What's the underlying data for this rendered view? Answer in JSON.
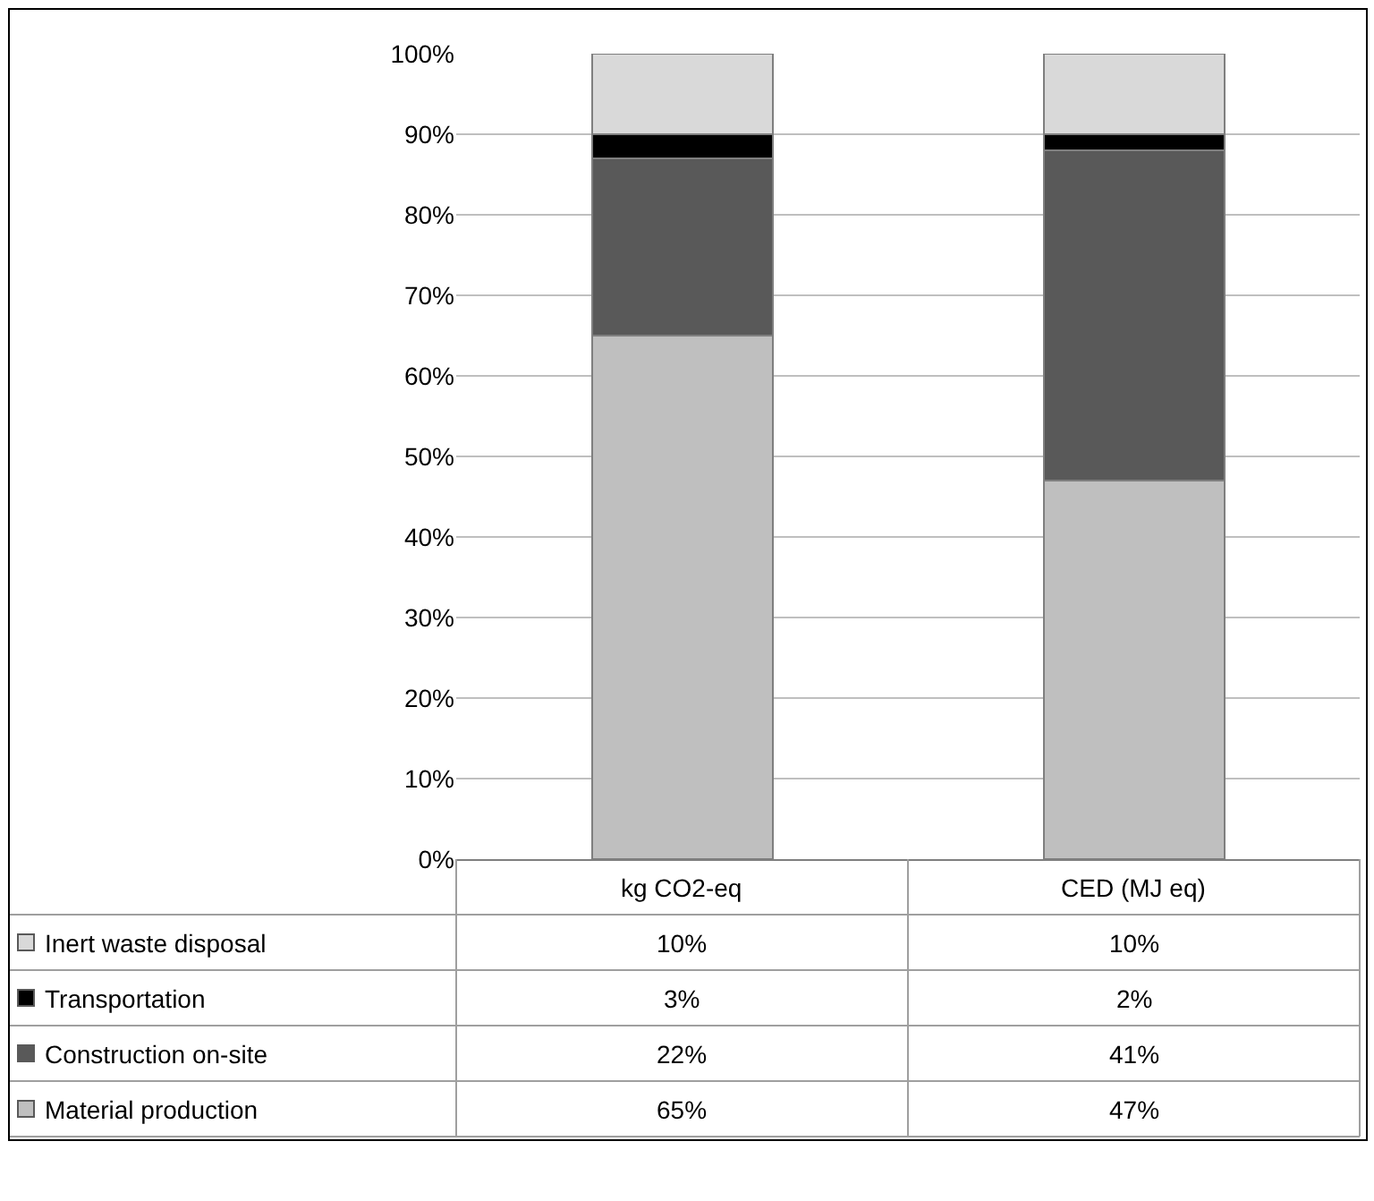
{
  "chart_data": {
    "type": "bar",
    "stacked": true,
    "categories": [
      "kg CO2-eq",
      "CED (MJ eq)"
    ],
    "series": [
      {
        "name": "Material production",
        "color": "#bfbfbf",
        "values": [
          65,
          47
        ],
        "value_labels": [
          "65%",
          "47%"
        ]
      },
      {
        "name": "Construction on-site",
        "color": "#595959",
        "values": [
          22,
          41
        ],
        "value_labels": [
          "22%",
          "41%"
        ]
      },
      {
        "name": "Transportation",
        "color": "#000000",
        "values": [
          3,
          2
        ],
        "value_labels": [
          "3%",
          "2%"
        ]
      },
      {
        "name": "Inert waste disposal",
        "color": "#d9d9d9",
        "values": [
          10,
          10
        ],
        "value_labels": [
          "10%",
          "10%"
        ]
      }
    ],
    "ylim": [
      0,
      100
    ],
    "yticks": [
      {
        "value": 0,
        "label": "0%"
      },
      {
        "value": 10,
        "label": "10%"
      },
      {
        "value": 20,
        "label": "20%"
      },
      {
        "value": 30,
        "label": "30%"
      },
      {
        "value": 40,
        "label": "40%"
      },
      {
        "value": 50,
        "label": "50%"
      },
      {
        "value": 60,
        "label": "60%"
      },
      {
        "value": 70,
        "label": "70%"
      },
      {
        "value": 80,
        "label": "80%"
      },
      {
        "value": 90,
        "label": "90%"
      },
      {
        "value": 100,
        "label": "100%"
      }
    ],
    "grid": "y",
    "legend": "bottom"
  }
}
